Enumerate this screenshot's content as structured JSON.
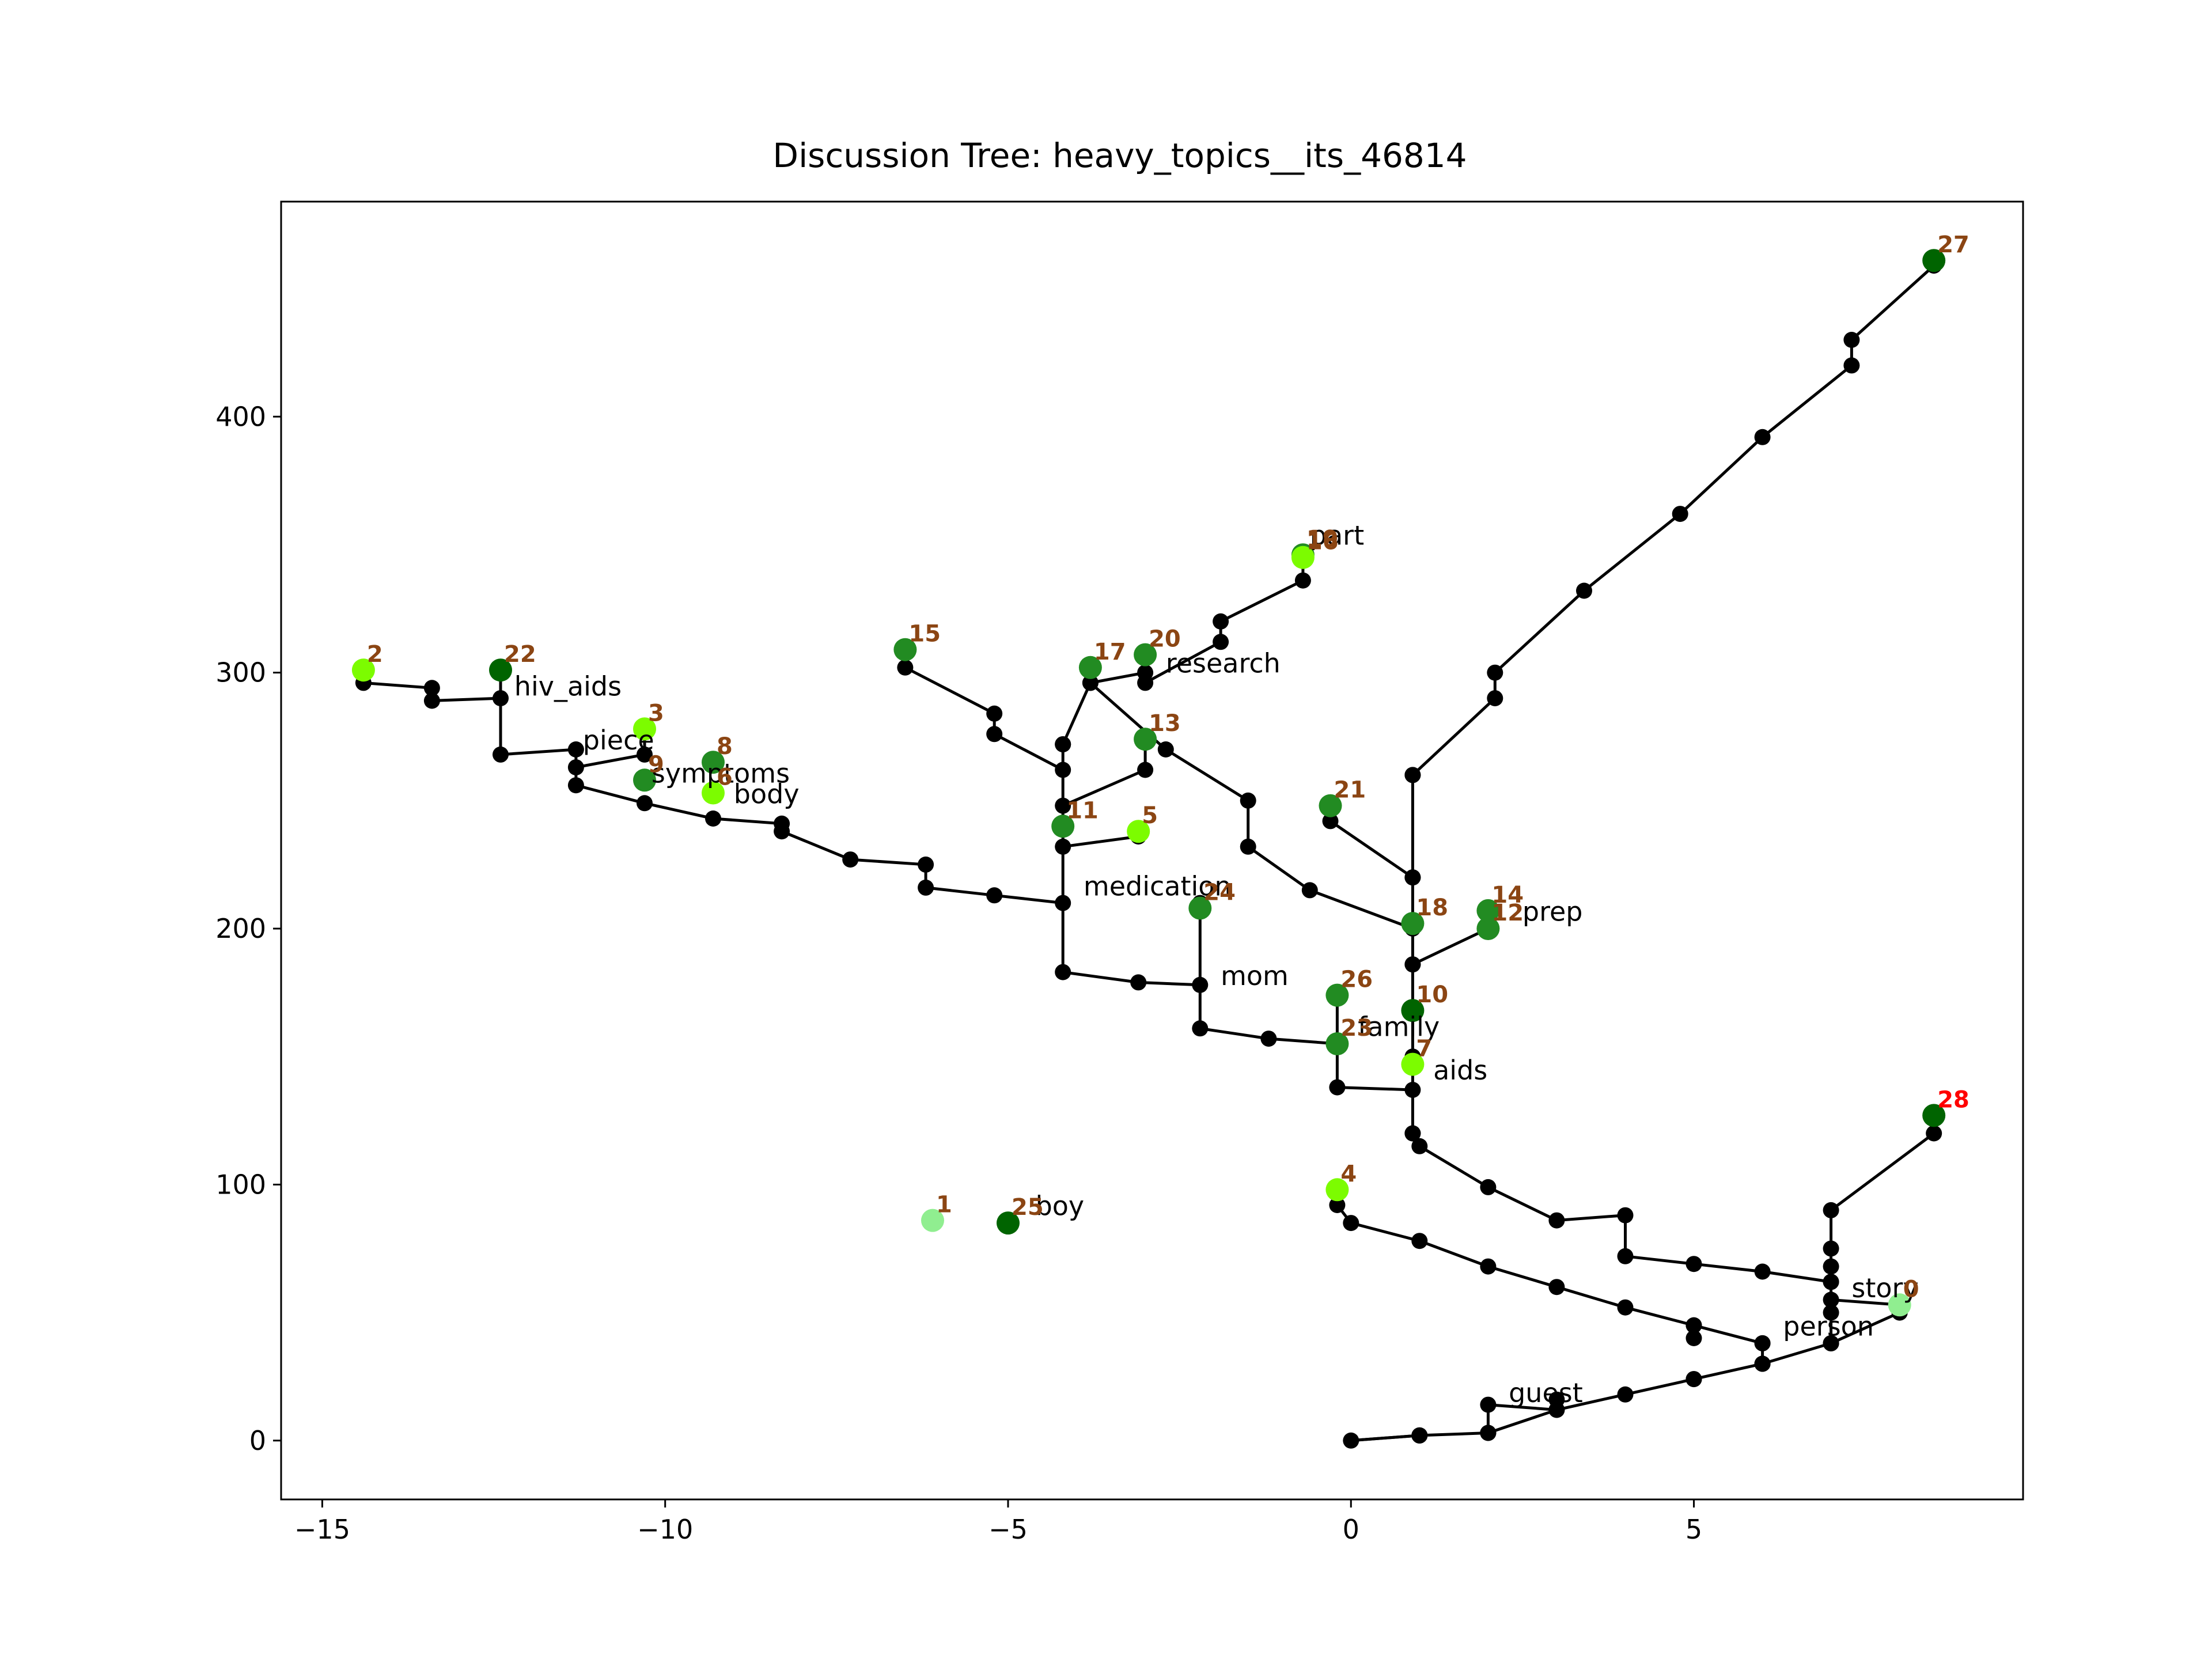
{
  "chart_data": {
    "type": "scatter",
    "title": "Discussion Tree: heavy_topics__its_46814",
    "xlabel": "",
    "ylabel": "",
    "xlim": [
      -15.6,
      9.8
    ],
    "ylim": [
      -23,
      484
    ],
    "x_ticks": [
      -15,
      -10,
      -5,
      0,
      5
    ],
    "x_tick_labels": [
      "−15",
      "−10",
      "−5",
      "0",
      "5"
    ],
    "y_ticks": [
      0,
      100,
      200,
      300,
      400
    ],
    "y_tick_labels": [
      "0",
      "100",
      "200",
      "300",
      "400"
    ],
    "grid": false,
    "colors": {
      "edge": "#000000",
      "id_label": "#8B4513",
      "root_label": "#ff0000",
      "dark_green": "#006400",
      "mid_green": "#228B22",
      "lime": "#7CFC00",
      "pale_green": "#90EE90"
    },
    "nodes": [
      {
        "id": "0",
        "x": 8.0,
        "y": 53,
        "color": "#90EE90"
      },
      {
        "id": "1",
        "x": -6.1,
        "y": 86,
        "color": "#90EE90"
      },
      {
        "id": "25",
        "x": -5.0,
        "y": 85,
        "color": "#006400"
      },
      {
        "id": "4",
        "x": -0.2,
        "y": 98,
        "color": "#7CFC00"
      },
      {
        "id": "28",
        "x": 8.5,
        "y": 127,
        "color": "#006400",
        "label_color": "#ff0000"
      },
      {
        "id": "27",
        "x": 8.5,
        "y": 461,
        "color": "#006400"
      },
      {
        "id": "7",
        "x": 0.9,
        "y": 147,
        "color": "#7CFC00"
      },
      {
        "id": "10",
        "x": 0.9,
        "y": 168,
        "color": "#006400"
      },
      {
        "id": "18",
        "x": 0.9,
        "y": 202,
        "color": "#228B22"
      },
      {
        "id": "12",
        "x": 2.0,
        "y": 200,
        "color": "#228B22"
      },
      {
        "id": "14",
        "x": 2.0,
        "y": 207,
        "color": "#228B22"
      },
      {
        "id": "21",
        "x": -0.3,
        "y": 248,
        "color": "#228B22"
      },
      {
        "id": "26",
        "x": -0.2,
        "y": 174,
        "color": "#228B22"
      },
      {
        "id": "23",
        "x": -0.2,
        "y": 155,
        "color": "#228B22"
      },
      {
        "id": "24",
        "x": -2.2,
        "y": 208,
        "color": "#228B22"
      },
      {
        "id": "11",
        "x": -4.2,
        "y": 240,
        "color": "#228B22"
      },
      {
        "id": "5",
        "x": -3.1,
        "y": 238,
        "color": "#7CFC00"
      },
      {
        "id": "13",
        "x": -3.0,
        "y": 274,
        "color": "#228B22"
      },
      {
        "id": "17",
        "x": -3.8,
        "y": 302,
        "color": "#228B22"
      },
      {
        "id": "20",
        "x": -3.0,
        "y": 307,
        "color": "#228B22"
      },
      {
        "id": "15",
        "x": -6.5,
        "y": 309,
        "color": "#228B22"
      },
      {
        "id": "19",
        "x": -0.7,
        "y": 346,
        "color": "#228B22"
      },
      {
        "id": "16",
        "x": -0.7,
        "y": 345,
        "color": "#7CFC00"
      },
      {
        "id": "22",
        "x": -12.4,
        "y": 301,
        "color": "#006400"
      },
      {
        "id": "2",
        "x": -14.4,
        "y": 301,
        "color": "#7CFC00"
      },
      {
        "id": "3",
        "x": -10.3,
        "y": 278,
        "color": "#7CFC00"
      },
      {
        "id": "8",
        "x": -9.3,
        "y": 265,
        "color": "#228B22"
      },
      {
        "id": "9",
        "x": -10.3,
        "y": 258,
        "color": "#228B22"
      },
      {
        "id": "6",
        "x": -9.3,
        "y": 253,
        "color": "#7CFC00"
      }
    ],
    "words": [
      {
        "text": "story",
        "x": 7.3,
        "y": 56
      },
      {
        "text": "person",
        "x": 6.3,
        "y": 41
      },
      {
        "text": "guest",
        "x": 2.3,
        "y": 15
      },
      {
        "text": "boy",
        "x": -4.6,
        "y": 88
      },
      {
        "text": "aids",
        "x": 1.2,
        "y": 141
      },
      {
        "text": "family",
        "x": 0.1,
        "y": 158
      },
      {
        "text": "mom",
        "x": -1.9,
        "y": 178
      },
      {
        "text": "medication",
        "x": -3.9,
        "y": 213
      },
      {
        "text": "prep",
        "x": 2.5,
        "y": 203
      },
      {
        "text": "research",
        "x": -2.7,
        "y": 300
      },
      {
        "text": "part",
        "x": -0.6,
        "y": 350
      },
      {
        "text": "hiv_aids",
        "x": -12.2,
        "y": 291
      },
      {
        "text": "piece",
        "x": -11.2,
        "y": 270
      },
      {
        "text": "symptoms",
        "x": -10.2,
        "y": 257
      },
      {
        "text": "body",
        "x": -9.0,
        "y": 249
      }
    ],
    "edges": [
      [
        [
          0,
          0
        ],
        [
          1,
          2
        ],
        [
          1,
          2
        ],
        [
          2,
          3
        ],
        [
          2,
          3
        ],
        [
          3,
          12
        ],
        [
          4,
          18
        ],
        [
          5,
          24
        ],
        [
          5,
          24
        ],
        [
          6,
          30
        ],
        [
          6,
          30
        ],
        [
          7,
          38
        ],
        [
          7,
          38
        ],
        [
          8,
          50
        ],
        [
          8,
          50
        ]
      ],
      [
        [
          1,
          2
        ],
        [
          0,
          0
        ]
      ],
      [
        [
          2,
          3
        ],
        [
          2,
          14
        ],
        [
          3,
          12
        ],
        [
          3,
          16
        ]
      ],
      [
        [
          6,
          30
        ],
        [
          6,
          38
        ]
      ],
      [
        [
          7,
          38
        ],
        [
          7,
          55
        ],
        [
          8,
          53
        ]
      ],
      [
        [
          6,
          38
        ],
        [
          5,
          45
        ],
        [
          4,
          52
        ],
        [
          3,
          60
        ],
        [
          2,
          68
        ],
        [
          1,
          78
        ],
        [
          0,
          85
        ],
        [
          -0.2,
          92
        ]
      ],
      [
        [
          5,
          45
        ],
        [
          5,
          40
        ]
      ],
      [
        [
          7,
          50
        ],
        [
          7,
          62
        ],
        [
          6,
          66
        ],
        [
          5,
          69
        ],
        [
          4,
          72
        ],
        [
          4,
          88
        ],
        [
          3,
          86
        ],
        [
          2,
          99
        ],
        [
          1,
          115
        ],
        [
          0.9,
          120
        ]
      ],
      [
        [
          7,
          62
        ],
        [
          7,
          68
        ],
        [
          7,
          75
        ],
        [
          7,
          90
        ],
        [
          8.5,
          120
        ]
      ],
      [
        [
          0.9,
          120
        ],
        [
          0.9,
          150
        ],
        [
          0.9,
          186
        ],
        [
          0.9,
          220
        ],
        [
          0.9,
          260
        ]
      ],
      [
        [
          0.9,
          186
        ],
        [
          2.0,
          200
        ]
      ],
      [
        [
          0.9,
          220
        ],
        [
          -0.3,
          242
        ]
      ],
      [
        [
          0.9,
          200
        ],
        [
          -0.6,
          215
        ],
        [
          -1.5,
          232
        ],
        [
          -1.5,
          250
        ],
        [
          -2.7,
          270
        ],
        [
          -3.8,
          296
        ]
      ],
      [
        [
          0.9,
          260
        ],
        [
          2.1,
          290
        ],
        [
          2.1,
          300
        ],
        [
          3.4,
          332
        ],
        [
          4.8,
          362
        ],
        [
          6.0,
          392
        ],
        [
          7.3,
          420
        ],
        [
          7.3,
          430
        ],
        [
          8.5,
          459
        ]
      ],
      [
        [
          0.9,
          137
        ],
        [
          -0.2,
          138
        ],
        [
          -0.2,
          175
        ]
      ],
      [
        [
          -0.2,
          155
        ],
        [
          -1.2,
          157
        ],
        [
          -2.2,
          161
        ],
        [
          -2.2,
          210
        ]
      ],
      [
        [
          -2.2,
          178
        ],
        [
          -3.1,
          179
        ],
        [
          -4.2,
          183
        ],
        [
          -4.2,
          272
        ]
      ],
      [
        [
          -4.2,
          210
        ],
        [
          -5.2,
          213
        ],
        [
          -6.2,
          216
        ],
        [
          -6.2,
          225
        ],
        [
          -7.3,
          227
        ],
        [
          -8.3,
          238
        ],
        [
          -8.3,
          241
        ],
        [
          -9.3,
          243
        ],
        [
          -10.3,
          249
        ],
        [
          -11.3,
          256
        ],
        [
          -11.3,
          270
        ],
        [
          -12.4,
          268
        ],
        [
          -12.4,
          301
        ]
      ],
      [
        [
          -12.4,
          290
        ],
        [
          -13.4,
          289
        ],
        [
          -13.4,
          294
        ],
        [
          -14.4,
          296
        ]
      ],
      [
        [
          -11.3,
          263
        ],
        [
          -10.3,
          268
        ],
        [
          -10.3,
          278
        ]
      ],
      [
        [
          -4.2,
          232
        ],
        [
          -3.1,
          236
        ]
      ],
      [
        [
          -4.2,
          248
        ],
        [
          -3.0,
          262
        ],
        [
          -3.0,
          274
        ]
      ],
      [
        [
          -4.2,
          272
        ],
        [
          -3.8,
          296
        ],
        [
          -3.0,
          300
        ],
        [
          -3.0,
          307
        ]
      ],
      [
        [
          -4.2,
          262
        ],
        [
          -5.2,
          276
        ],
        [
          -5.2,
          284
        ],
        [
          -6.5,
          302
        ]
      ],
      [
        [
          -3.0,
          296
        ],
        [
          -1.9,
          312
        ],
        [
          -1.9,
          320
        ],
        [
          -0.7,
          336
        ],
        [
          -0.7,
          346
        ]
      ]
    ]
  }
}
